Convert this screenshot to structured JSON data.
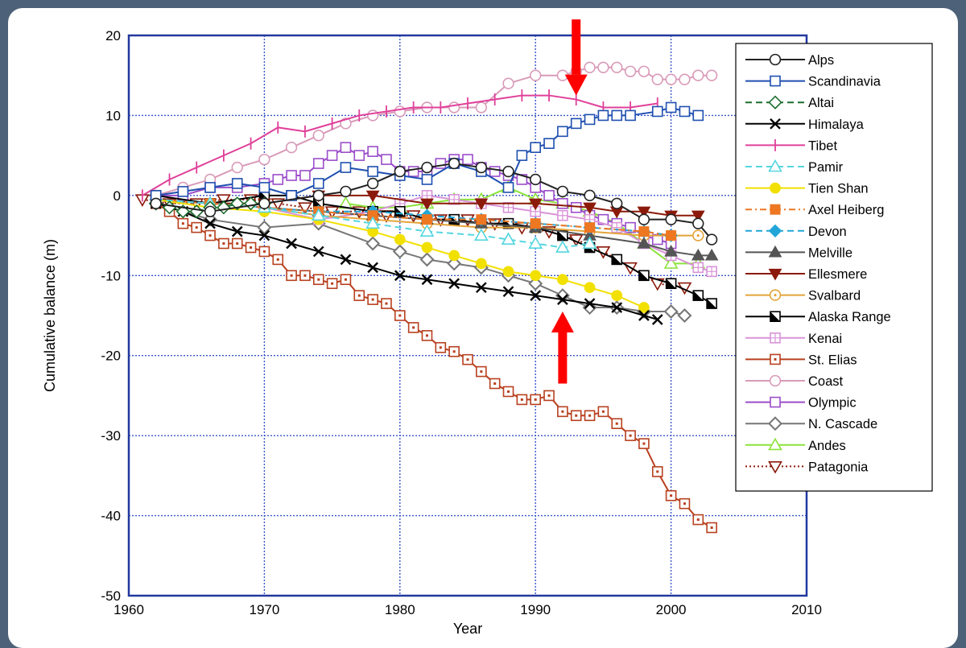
{
  "chart_data": {
    "type": "line",
    "title": "",
    "xlabel": "Year",
    "ylabel": "Cumulative balance (m)",
    "xlim": [
      1960,
      2010
    ],
    "ylim": [
      -50,
      20
    ],
    "xticks": [
      "1960",
      "1970",
      "1980",
      "1990",
      "2000",
      "2010"
    ],
    "yticks": [
      "20",
      "10",
      "0",
      "-10",
      "-20",
      "-30",
      "-40",
      "-50"
    ],
    "grid": true,
    "legend_position": "right",
    "annotations": [
      {
        "type": "arrow",
        "direction": "down",
        "color": "#ff0000",
        "x": 1993,
        "y_from": 22,
        "y_to": 12.5
      },
      {
        "type": "arrow",
        "direction": "up",
        "color": "#ff0000",
        "x": 1992,
        "y_from": -23.5,
        "y_to": -14.5
      }
    ],
    "series": [
      {
        "name": "Alps",
        "color": "#222222",
        "marker": "circle",
        "dash": "solid",
        "x": [
          1962,
          1966,
          1970,
          1974,
          1976,
          1978,
          1980,
          1982,
          1984,
          1986,
          1988,
          1990,
          1992,
          1994,
          1996,
          1998,
          2000,
          2002,
          2003
        ],
        "y": [
          -1,
          -2,
          -1,
          0,
          0.5,
          1.5,
          3,
          3.5,
          4,
          3.5,
          3,
          2,
          0.5,
          0,
          -1,
          -3,
          -3,
          -3.5,
          -5.5
        ]
      },
      {
        "name": "Scandinavia",
        "color": "#1f4fb0",
        "marker": "square",
        "dash": "solid",
        "x": [
          1962,
          1964,
          1966,
          1968,
          1970,
          1972,
          1974,
          1976,
          1978,
          1980,
          1982,
          1984,
          1986,
          1988,
          1989,
          1990,
          1991,
          1992,
          1993,
          1994,
          1995,
          1996,
          1997,
          1999,
          2000,
          2001,
          2002
        ],
        "y": [
          0,
          0.5,
          1,
          1.5,
          1,
          0,
          1.5,
          3.5,
          3,
          2.5,
          2,
          4,
          3,
          1,
          5,
          6,
          6.5,
          8,
          9,
          9.5,
          10,
          10,
          10,
          10.5,
          11,
          10.5,
          10
        ]
      },
      {
        "name": "Altai",
        "color": "#1e6e2e",
        "marker": "diamond",
        "dash": "dash",
        "x": [
          1962,
          1963,
          1964,
          1965,
          1966,
          1967,
          1968,
          1969,
          1970
        ],
        "y": [
          -1,
          -1.5,
          -2,
          -2,
          -1.5,
          -1.5,
          -1,
          -1,
          -1
        ]
      },
      {
        "name": "Himalaya",
        "color": "#000000",
        "marker": "x",
        "dash": "solid",
        "x": [
          1962,
          1964,
          1966,
          1968,
          1970,
          1972,
          1974,
          1976,
          1978,
          1980,
          1982,
          1984,
          1986,
          1988,
          1990,
          1992,
          1994,
          1996,
          1998,
          1999
        ],
        "y": [
          -1,
          -2,
          -3.5,
          -4.5,
          -5,
          -6,
          -7,
          -8,
          -9,
          -10,
          -10.5,
          -11,
          -11.5,
          -12,
          -12.5,
          -13,
          -13.5,
          -14,
          -15,
          -15.5
        ]
      },
      {
        "name": "Tibet",
        "color": "#e0409a",
        "marker": "plus",
        "dash": "solid",
        "x": [
          1961,
          1963,
          1965,
          1967,
          1969,
          1971,
          1973,
          1975,
          1977,
          1979,
          1981,
          1983,
          1985,
          1987,
          1989,
          1991,
          1993,
          1995,
          1997,
          1999
        ],
        "y": [
          0,
          2,
          3.5,
          5,
          6.5,
          8.5,
          8,
          9,
          10,
          10.5,
          11,
          11,
          11.5,
          12,
          12.5,
          12.5,
          12,
          11,
          11,
          11.5
        ]
      },
      {
        "name": "Pamir",
        "color": "#55d6e0",
        "marker": "triangle",
        "dash": "dash",
        "x": [
          1962,
          1966,
          1970,
          1974,
          1978,
          1982,
          1986,
          1988,
          1990,
          1992,
          1994
        ],
        "y": [
          -0.5,
          -1,
          -1.5,
          -2.5,
          -3.5,
          -4.5,
          -5,
          -5.5,
          -6,
          -6.5,
          -6
        ]
      },
      {
        "name": "Tien Shan",
        "color": "#f2e000",
        "marker": "dot",
        "dash": "solid",
        "x": [
          1962,
          1966,
          1970,
          1974,
          1978,
          1980,
          1982,
          1984,
          1986,
          1988,
          1990,
          1992,
          1994,
          1996,
          1998
        ],
        "y": [
          -0.5,
          -1.5,
          -2,
          -3,
          -4.5,
          -5.5,
          -6.5,
          -7.5,
          -8.5,
          -9.5,
          -10,
          -10.5,
          -11.5,
          -12.5,
          -14
        ]
      },
      {
        "name": "Axel Heiberg",
        "color": "#ee7722",
        "marker": "fsquare",
        "dash": "dashdot",
        "x": [
          1962,
          1966,
          1970,
          1974,
          1978,
          1982,
          1986,
          1990,
          1994,
          1998,
          2000
        ],
        "y": [
          -0.5,
          -1,
          -1.5,
          -2,
          -2.5,
          -3,
          -3,
          -3.5,
          -4,
          -4.5,
          -5
        ]
      },
      {
        "name": "Devon",
        "color": "#22a6d8",
        "marker": "fdiamond",
        "dash": "dash",
        "x": [
          1962,
          1966,
          1970,
          1974,
          1978,
          1982,
          1986,
          1990,
          1994,
          1998,
          2000
        ],
        "y": [
          -0.5,
          -1,
          -1.5,
          -2,
          -2,
          -2.5,
          -3,
          -3.5,
          -4,
          -4.5,
          -5
        ]
      },
      {
        "name": "Melville",
        "color": "#555555",
        "marker": "ftriangle",
        "dash": "solid",
        "x": [
          1962,
          1966,
          1970,
          1974,
          1978,
          1982,
          1986,
          1990,
          1994,
          1998,
          2000,
          2002,
          2003
        ],
        "y": [
          -0.5,
          -1,
          -1.5,
          -2,
          -2.5,
          -3,
          -3.5,
          -4,
          -5,
          -6,
          -7,
          -7.5,
          -7.5
        ]
      },
      {
        "name": "Ellesmere",
        "color": "#8b1a0a",
        "marker": "ftriangledown",
        "dash": "solid",
        "x": [
          1962,
          1966,
          1970,
          1974,
          1978,
          1982,
          1986,
          1990,
          1994,
          1996,
          1998,
          2000,
          2002
        ],
        "y": [
          -0.5,
          -1,
          -1,
          0,
          0,
          -1,
          -1,
          -1,
          -1.5,
          -2,
          -2,
          -2.5,
          -2.5
        ]
      },
      {
        "name": "Svalbard",
        "color": "#e3a43a",
        "marker": "circledot",
        "dash": "solid",
        "x": [
          1962,
          1966,
          1970,
          1974,
          1978,
          1982,
          1986,
          1990,
          1994,
          1998,
          2000,
          2002
        ],
        "y": [
          -0.5,
          -1,
          -1.5,
          -2.5,
          -3,
          -3.5,
          -4,
          -4,
          -4.5,
          -5,
          -5,
          -5
        ]
      },
      {
        "name": "Alaska Range",
        "color": "#000000",
        "marker": "hsquare",
        "dash": "solid",
        "x": [
          1962,
          1966,
          1970,
          1972,
          1974,
          1978,
          1980,
          1982,
          1984,
          1986,
          1988,
          1990,
          1992,
          1994,
          1996,
          1998,
          2000,
          2002,
          2003
        ],
        "y": [
          0,
          -1,
          0,
          0,
          -1,
          -2,
          -2,
          -3,
          -3,
          -3.5,
          -3.5,
          -4,
          -5,
          -6.5,
          -8,
          -10,
          -11,
          -12.5,
          -13.5
        ]
      },
      {
        "name": "Kenai",
        "color": "#d994d8",
        "marker": "gsquare",
        "dash": "solid",
        "x": [
          1962,
          1966,
          1970,
          1974,
          1978,
          1980,
          1982,
          1984,
          1986,
          1988,
          1990,
          1992,
          1994,
          1996,
          1998,
          2000,
          2002,
          2003
        ],
        "y": [
          -0.5,
          -1,
          -1.5,
          -3,
          -2,
          -1,
          0,
          -0.5,
          -1,
          -1.5,
          -2,
          -2.5,
          -3,
          -4,
          -6,
          -7.5,
          -9,
          -9.5
        ]
      },
      {
        "name": "St. Elias",
        "color": "#b8401f",
        "marker": "dsquare",
        "dash": "solid",
        "x": [
          1962,
          1963,
          1964,
          1965,
          1966,
          1967,
          1968,
          1969,
          1970,
          1971,
          1972,
          1973,
          1974,
          1975,
          1976,
          1977,
          1978,
          1979,
          1980,
          1981,
          1982,
          1983,
          1984,
          1985,
          1986,
          1987,
          1988,
          1989,
          1990,
          1991,
          1992,
          1993,
          1994,
          1995,
          1996,
          1997,
          1998,
          1999,
          2000,
          2001,
          2002,
          2003
        ],
        "y": [
          -1,
          -2,
          -3.5,
          -4,
          -5,
          -6,
          -6,
          -6.5,
          -7,
          -8,
          -10,
          -10,
          -10.5,
          -11,
          -10.5,
          -12.5,
          -13,
          -13.5,
          -15,
          -16.5,
          -17.5,
          -19,
          -19.5,
          -20.5,
          -22,
          -23.5,
          -24.5,
          -25.5,
          -25.5,
          -25,
          -27,
          -27.5,
          -27.5,
          -27,
          -28.5,
          -30,
          -31,
          -34.5,
          -37.5,
          -38.5,
          -40.5,
          -41.5
        ]
      },
      {
        "name": "Coast",
        "color": "#d99ab8",
        "marker": "circle",
        "dash": "solid",
        "x": [
          1962,
          1964,
          1966,
          1968,
          1970,
          1972,
          1974,
          1976,
          1978,
          1980,
          1982,
          1984,
          1986,
          1988,
          1990,
          1992,
          1993,
          1994,
          1995,
          1996,
          1997,
          1998,
          1999,
          2000,
          2001,
          2002,
          2003
        ],
        "y": [
          0,
          1,
          2,
          3.5,
          4.5,
          6,
          7.5,
          9,
          10,
          10.5,
          11,
          11,
          11,
          14,
          15,
          15,
          15.5,
          16,
          16,
          16,
          15.5,
          15.5,
          14.5,
          14.5,
          14.5,
          15,
          15
        ]
      },
      {
        "name": "Olympic",
        "color": "#9b4dca",
        "marker": "square",
        "dash": "solid",
        "x": [
          1962,
          1964,
          1966,
          1968,
          1970,
          1971,
          1972,
          1973,
          1974,
          1975,
          1976,
          1977,
          1978,
          1979,
          1980,
          1981,
          1982,
          1983,
          1984,
          1985,
          1986,
          1987,
          1988,
          1989,
          1990,
          1991,
          1992,
          1993,
          1994,
          1995,
          1996,
          1997,
          1998,
          1999,
          2000
        ],
        "y": [
          0,
          0,
          1,
          1,
          1.5,
          2,
          2.5,
          2.5,
          4,
          5,
          6,
          5,
          5.5,
          4.5,
          3,
          3,
          3,
          4,
          4.5,
          4.5,
          3.5,
          3,
          2.5,
          2,
          1,
          0,
          -1,
          -1.5,
          -2.5,
          -3,
          -3.5,
          -4,
          -5,
          -5.5,
          -6
        ]
      },
      {
        "name": "N. Cascade",
        "color": "#777777",
        "marker": "hdiamond",
        "dash": "solid",
        "x": [
          1962,
          1966,
          1970,
          1974,
          1978,
          1980,
          1982,
          1984,
          1986,
          1988,
          1990,
          1992,
          1994,
          1996,
          1998,
          2000,
          2001
        ],
        "y": [
          -1,
          -3,
          -4,
          -3.5,
          -6,
          -7,
          -8,
          -8.5,
          -9,
          -10,
          -11,
          -12.5,
          -14,
          -14,
          -14.5,
          -14.5,
          -15
        ]
      },
      {
        "name": "Andes",
        "color": "#8be33a",
        "marker": "triangle",
        "dash": "solid",
        "x": [
          1976,
          1978,
          1980,
          1982,
          1984,
          1986,
          1988,
          1990,
          1992,
          1994,
          1996,
          1998,
          2000,
          2002
        ],
        "y": [
          -1,
          -1.5,
          -1.5,
          -1,
          -0.5,
          -0.5,
          1,
          -0.5,
          -1,
          -2,
          -3.5,
          -6,
          -8.5,
          -8.5
        ]
      },
      {
        "name": "Patagonia",
        "color": "#8b1a0a",
        "marker": "triangledown",
        "dash": "dot",
        "x": [
          1961,
          1963,
          1965,
          1967,
          1969,
          1971,
          1973,
          1975,
          1977,
          1979,
          1981,
          1983,
          1985,
          1987,
          1989,
          1991,
          1993,
          1995,
          1997,
          1999,
          2001
        ],
        "y": [
          -0.5,
          -1,
          -1,
          -0.5,
          -0.5,
          -1,
          -1.5,
          -2,
          -2,
          -2.5,
          -2.5,
          -3,
          -3,
          -3.5,
          -4,
          -4.5,
          -5.5,
          -7,
          -9,
          -11,
          -11.5
        ]
      }
    ]
  }
}
